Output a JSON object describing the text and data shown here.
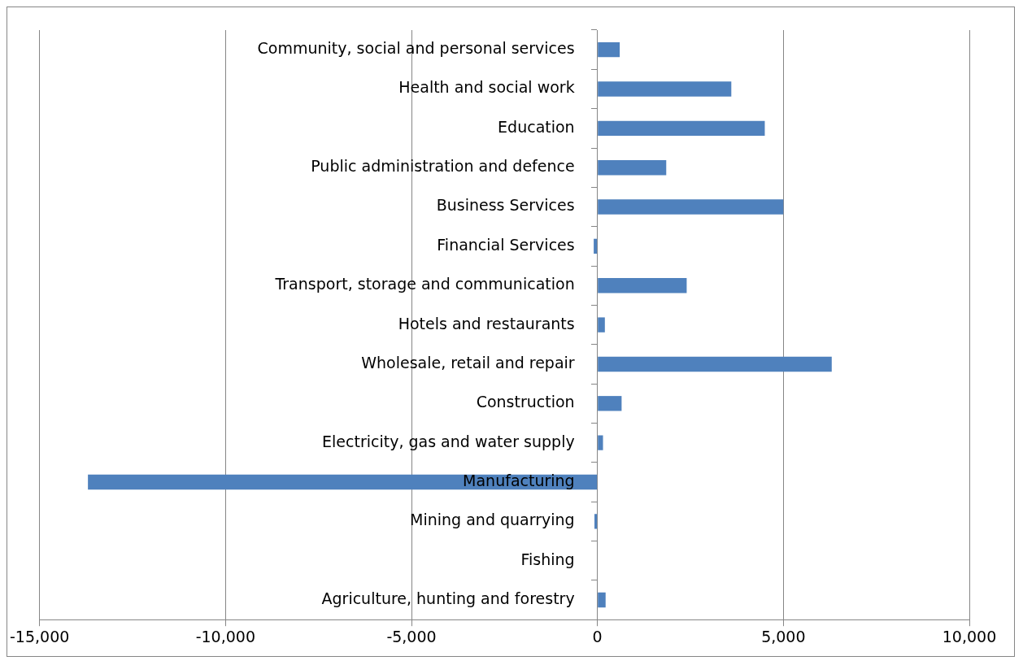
{
  "chart_data": {
    "type": "bar",
    "orientation": "horizontal",
    "categories": [
      "Community, social and personal services",
      "Health and social work",
      "Education",
      "Public administration and defence",
      "Business Services",
      "Financial Services",
      "Transport, storage and communication",
      "Hotels and restaurants",
      "Wholesale, retail and repair",
      "Construction",
      "Electricity, gas and water supply",
      "Manufacturing",
      "Mining and quarrying",
      "Fishing",
      "Agriculture, hunting and forestry"
    ],
    "values": [
      600,
      3600,
      4500,
      1850,
      5000,
      -100,
      2400,
      200,
      6300,
      650,
      150,
      -13700,
      -80,
      0,
      220
    ],
    "color": "#4f81bd",
    "xlim": [
      -15000,
      10000
    ],
    "xticks": [
      {
        "value": -15000,
        "label": "-15,000"
      },
      {
        "value": -10000,
        "label": "-10,000"
      },
      {
        "value": -5000,
        "label": "-5,000"
      },
      0,
      {
        "value": 5000,
        "label": "5,000"
      },
      {
        "value": 10000,
        "label": "10,000"
      }
    ],
    "grid": "x",
    "legend": false
  }
}
